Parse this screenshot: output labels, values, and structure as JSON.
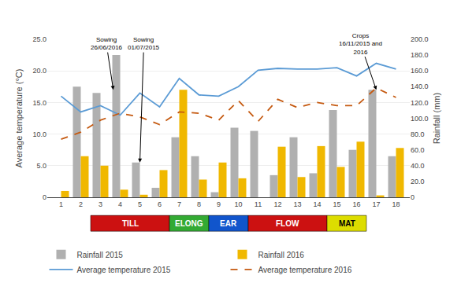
{
  "chart_data": {
    "type": "bar",
    "x": [
      1,
      2,
      3,
      4,
      5,
      6,
      7,
      8,
      9,
      10,
      11,
      12,
      13,
      14,
      15,
      16,
      17,
      18
    ],
    "xlim": [
      0.3,
      18.7
    ],
    "xticks": [
      1,
      2,
      3,
      4,
      5,
      6,
      7,
      8,
      9,
      10,
      11,
      12,
      13,
      14,
      15,
      16,
      17,
      18
    ],
    "ylabel": "Average temperature (°C)",
    "ylim": [
      0,
      25
    ],
    "yticks": [
      0,
      {
        "value": 5,
        "label": "5.0"
      },
      {
        "value": 10,
        "label": "10.0"
      },
      {
        "value": 15,
        "label": "15.0"
      },
      {
        "value": 20,
        "label": "20.0"
      },
      {
        "value": 25,
        "label": "25.0"
      }
    ],
    "y2label": "Rainfall (mm)",
    "y2lim": [
      0,
      200
    ],
    "y2ticks": [
      0,
      {
        "value": 20,
        "label": "20.0"
      },
      {
        "value": 40,
        "label": "40.0"
      },
      {
        "value": 60,
        "label": "60.0"
      },
      {
        "value": 80,
        "label": "80.0"
      },
      {
        "value": 100,
        "label": "100.0"
      },
      {
        "value": 120,
        "label": "120.0"
      },
      {
        "value": 140,
        "label": "140.0"
      },
      {
        "value": 160,
        "label": "160.0"
      },
      {
        "value": 180,
        "label": "180.0"
      },
      {
        "value": 200,
        "label": "200.0"
      }
    ],
    "grid": true,
    "legend": "bottom",
    "series": [
      {
        "name": "Rainfall 2015",
        "type": "bar",
        "axis": "y2",
        "color": "#b0b0b0",
        "values": [
          0.0,
          140.0,
          132.0,
          180.0,
          44.0,
          12.0,
          76.0,
          52.0,
          6.4,
          88.0,
          84.0,
          28.0,
          76.0,
          30.4,
          110.4,
          60.0,
          136.0,
          52.0
        ]
      },
      {
        "name": "Rainfall 2016",
        "type": "bar",
        "axis": "y2",
        "color": "#f0b800",
        "values": [
          8.0,
          52.0,
          40.0,
          9.6,
          3.2,
          34.4,
          136.0,
          22.4,
          44.0,
          24.0,
          0.0,
          64.0,
          25.6,
          64.8,
          38.4,
          70.4,
          2.4,
          62.4
        ]
      },
      {
        "name": "Average temperature 2015",
        "type": "line",
        "line_style": "solid",
        "color": "#5b9bd5",
        "values": [
          16.0,
          13.5,
          14.5,
          13.0,
          16.5,
          14.3,
          18.8,
          16.2,
          16.0,
          17.5,
          20.1,
          20.4,
          20.3,
          20.3,
          20.5,
          19.2,
          21.2,
          20.3
        ]
      },
      {
        "name": "Average temperature 2016",
        "type": "line",
        "line_style": "dashed",
        "color": "#c55a11",
        "values": [
          9.2,
          10.3,
          12.2,
          13.3,
          12.7,
          11.5,
          13.5,
          13.3,
          12.2,
          15.3,
          12.0,
          15.5,
          14.2,
          15.0,
          14.5,
          14.5,
          17.3,
          15.8
        ]
      }
    ],
    "annotations": [
      {
        "text": "Sowing\n26/06/2016",
        "x": 3.65,
        "y": 17.0,
        "ax": 3.3,
        "ay": 24.3
      },
      {
        "text": "Sowing\n01/07/2015",
        "x": 5.0,
        "y": 5.5,
        "ax": 5.2,
        "ay": 24.3
      },
      {
        "text": "Crops\n16/11/2015 and\n2016",
        "x": 17.0,
        "y": 17.0,
        "ax": 16.2,
        "ay": 24.3
      }
    ],
    "stages": [
      {
        "label": "TILL",
        "x1": 2.5,
        "x2": 6.5,
        "color": "#cc1111",
        "text_color": "white"
      },
      {
        "label": "ELONG",
        "x1": 6.5,
        "x2": 8.5,
        "color": "#33aa33",
        "text_color": "white"
      },
      {
        "label": "EAR",
        "x1": 8.5,
        "x2": 10.5,
        "color": "#1155cc",
        "text_color": "white"
      },
      {
        "label": "FLOW",
        "x1": 10.5,
        "x2": 14.5,
        "color": "#cc1111",
        "text_color": "white"
      },
      {
        "label": "MAT",
        "x1": 14.5,
        "x2": 16.5,
        "color": "#dddd00",
        "text_color": "black"
      }
    ]
  }
}
